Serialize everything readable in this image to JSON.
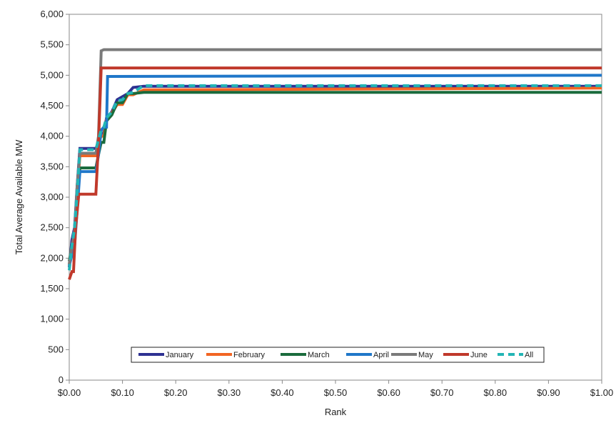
{
  "chart_data": {
    "type": "line",
    "title": "",
    "xlabel": "Rank",
    "ylabel": "Total Average Available MW",
    "xlim": [
      0,
      1
    ],
    "ylim": [
      0,
      6000
    ],
    "x_ticks": [
      0,
      0.1,
      0.2,
      0.3,
      0.4,
      0.5,
      0.6,
      0.7,
      0.8,
      0.9,
      1.0
    ],
    "x_tick_labels": [
      "$0.00",
      "$0.10",
      "$0.20",
      "$0.30",
      "$0.40",
      "$0.50",
      "$0.60",
      "$0.70",
      "$0.80",
      "$0.90",
      "$1.00"
    ],
    "y_ticks": [
      0,
      500,
      1000,
      1500,
      2000,
      2500,
      3000,
      3500,
      4000,
      4500,
      5000,
      5500,
      6000
    ],
    "y_tick_labels": [
      "0",
      "500",
      "1,000",
      "1,500",
      "2,000",
      "2,500",
      "3,000",
      "3,500",
      "4,000",
      "4,500",
      "5,000",
      "5,500",
      "6,000"
    ],
    "grid": false,
    "legend_position": "bottom-center",
    "series": [
      {
        "name": "January",
        "color": "#2e3192",
        "dash": false,
        "x": [
          0,
          0.005,
          0.01,
          0.015,
          0.02,
          0.05,
          0.055,
          0.06,
          0.065,
          0.07,
          0.075,
          0.08,
          0.09,
          0.1,
          0.11,
          0.12,
          0.14,
          1.0
        ],
        "y": [
          1850,
          2300,
          2500,
          3200,
          3800,
          3800,
          3900,
          4050,
          4050,
          4300,
          4350,
          4400,
          4600,
          4650,
          4700,
          4800,
          4820,
          4820
        ]
      },
      {
        "name": "February",
        "color": "#f26522",
        "dash": false,
        "x": [
          0,
          0.005,
          0.01,
          0.015,
          0.02,
          0.05,
          0.055,
          0.06,
          0.065,
          0.07,
          0.075,
          0.08,
          0.09,
          0.1,
          0.11,
          0.12,
          0.14,
          1.0
        ],
        "y": [
          1900,
          2200,
          2400,
          3100,
          3680,
          3680,
          3900,
          4000,
          4000,
          4280,
          4330,
          4380,
          4520,
          4520,
          4680,
          4680,
          4760,
          4790
        ]
      },
      {
        "name": "March",
        "color": "#1a6b3c",
        "dash": false,
        "x": [
          0,
          0.005,
          0.01,
          0.015,
          0.02,
          0.05,
          0.055,
          0.06,
          0.065,
          0.07,
          0.075,
          0.08,
          0.09,
          0.1,
          0.11,
          0.12,
          0.14,
          1.0
        ],
        "y": [
          1950,
          2200,
          2350,
          3000,
          3480,
          3480,
          3700,
          3900,
          3900,
          4250,
          4300,
          4350,
          4550,
          4550,
          4700,
          4700,
          4720,
          4720
        ]
      },
      {
        "name": "April",
        "color": "#1f77c9",
        "dash": false,
        "x": [
          0,
          0.005,
          0.01,
          0.015,
          0.02,
          0.05,
          0.055,
          0.06,
          0.065,
          0.07,
          0.072,
          1.0
        ],
        "y": [
          1880,
          2050,
          2200,
          2800,
          3420,
          3420,
          3700,
          4100,
          4150,
          4150,
          4980,
          5000
        ]
      },
      {
        "name": "May",
        "color": "#7a7a7a",
        "dash": false,
        "x": [
          0,
          0.005,
          0.01,
          0.015,
          0.02,
          0.05,
          0.055,
          0.06,
          0.065,
          1.0
        ],
        "y": [
          1900,
          2200,
          2400,
          3200,
          3720,
          3720,
          4000,
          5400,
          5420,
          5420
        ]
      },
      {
        "name": "June",
        "color": "#c0392b",
        "dash": false,
        "x": [
          0,
          0.005,
          0.008,
          0.012,
          0.018,
          0.05,
          0.055,
          0.06,
          1.0
        ],
        "y": [
          1650,
          1780,
          1780,
          2500,
          3050,
          3050,
          3900,
          5120,
          5120
        ]
      },
      {
        "name": "All",
        "color": "#23b5b5",
        "dash": true,
        "x": [
          0,
          0.005,
          0.01,
          0.015,
          0.02,
          0.05,
          0.055,
          0.06,
          0.065,
          0.07,
          0.075,
          0.08,
          0.09,
          0.1,
          0.11,
          0.12,
          0.14,
          1.0
        ],
        "y": [
          1800,
          2200,
          2500,
          3100,
          3780,
          3780,
          3950,
          4100,
          4150,
          4300,
          4350,
          4400,
          4580,
          4600,
          4700,
          4720,
          4830,
          4830
        ]
      }
    ]
  }
}
